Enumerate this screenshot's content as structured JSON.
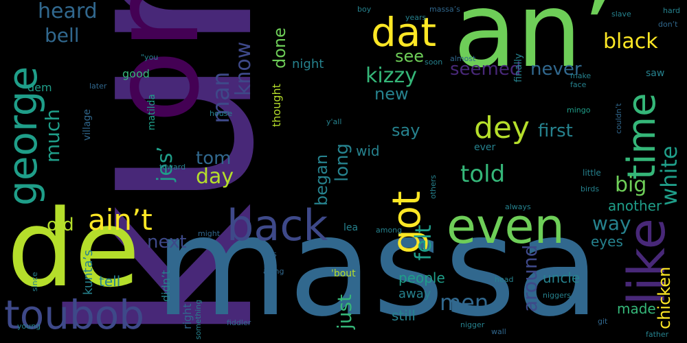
{
  "background": "#000000",
  "palette": [
    "#440154",
    "#482878",
    "#3e4989",
    "#31688e",
    "#26828e",
    "#1f9e89",
    "#35b779",
    "#6ece58",
    "#b5de2b",
    "#fde725"
  ],
  "words": [
    {
      "text": "kunta",
      "weight": 100,
      "color": "#482878"
    },
    {
      "text": "one",
      "weight": 72,
      "color": "#440154"
    },
    {
      "text": "an’",
      "weight": 60,
      "color": "#6ece58"
    },
    {
      "text": "massa",
      "weight": 62,
      "color": "#31688e"
    },
    {
      "text": "de",
      "weight": 55,
      "color": "#b5de2b"
    },
    {
      "text": "back",
      "weight": 30,
      "color": "#3e4989"
    },
    {
      "text": "even",
      "weight": 26,
      "color": "#6ece58"
    },
    {
      "text": "like",
      "weight": 26,
      "color": "#482878"
    },
    {
      "text": "toubob",
      "weight": 20,
      "color": "#3e4989"
    },
    {
      "text": "george",
      "weight": 22,
      "color": "#1f9e89"
    },
    {
      "text": "dat",
      "weight": 20,
      "color": "#fde725"
    },
    {
      "text": "time",
      "weight": 18,
      "color": "#35b779"
    },
    {
      "text": "got",
      "weight": 18,
      "color": "#fde725"
    },
    {
      "text": "ain’t",
      "weight": 15,
      "color": "#fde725"
    },
    {
      "text": "white",
      "weight": 13,
      "color": "#1f9e89"
    },
    {
      "text": "heard",
      "weight": 10,
      "color": "#31688e"
    },
    {
      "text": "bell",
      "weight": 10,
      "color": "#31688e"
    },
    {
      "text": "much",
      "weight": 9,
      "color": "#1f9e89"
    },
    {
      "text": "man",
      "weight": 10,
      "color": "#3e4989"
    },
    {
      "text": "know",
      "weight": 9,
      "color": "#3e4989"
    },
    {
      "text": "done",
      "weight": 8,
      "color": "#6ece58"
    },
    {
      "text": "seemed",
      "weight": 8,
      "color": "#482878"
    },
    {
      "text": "never",
      "weight": 8,
      "color": "#31688e"
    },
    {
      "text": "black",
      "weight": 9,
      "color": "#fde725"
    },
    {
      "text": "kizzy",
      "weight": 9,
      "color": "#35b779"
    },
    {
      "text": "see",
      "weight": 7,
      "color": "#6ece58"
    },
    {
      "text": "night",
      "weight": 6,
      "color": "#26828e"
    },
    {
      "text": "new",
      "weight": 8,
      "color": "#26828e"
    },
    {
      "text": "dey",
      "weight": 11,
      "color": "#b5de2b"
    },
    {
      "text": "say",
      "weight": 7,
      "color": "#26828e"
    },
    {
      "text": "first",
      "weight": 8,
      "color": "#26828e"
    },
    {
      "text": "tom",
      "weight": 8,
      "color": "#31688e"
    },
    {
      "text": "day",
      "weight": 9,
      "color": "#b5de2b"
    },
    {
      "text": "jes’",
      "weight": 9,
      "color": "#1f9e89"
    },
    {
      "text": "told",
      "weight": 10,
      "color": "#35b779"
    },
    {
      "text": "began",
      "weight": 8,
      "color": "#26828e"
    },
    {
      "text": "long",
      "weight": 8,
      "color": "#26828e"
    },
    {
      "text": "wid",
      "weight": 7,
      "color": "#26828e"
    },
    {
      "text": "big",
      "weight": 9,
      "color": "#6ece58"
    },
    {
      "text": "old",
      "weight": 8,
      "color": "#b5de2b"
    },
    {
      "text": "next",
      "weight": 8,
      "color": "#3e4989"
    },
    {
      "text": "kunta’s",
      "weight": 6,
      "color": "#26828e"
    },
    {
      "text": "tell",
      "weight": 6,
      "color": "#26828e"
    },
    {
      "text": "felt",
      "weight": 9,
      "color": "#1f9e89"
    },
    {
      "text": "just",
      "weight": 8,
      "color": "#35b779"
    },
    {
      "text": "men",
      "weight": 9,
      "color": "#31688e"
    },
    {
      "text": "around",
      "weight": 8,
      "color": "#3e4989"
    },
    {
      "text": "people",
      "weight": 6,
      "color": "#1f9e89"
    },
    {
      "text": "away",
      "weight": 6,
      "color": "#26828e"
    },
    {
      "text": "still",
      "weight": 6,
      "color": "#26828e"
    },
    {
      "text": "another",
      "weight": 6,
      "color": "#1f9e89"
    },
    {
      "text": "way",
      "weight": 8,
      "color": "#26828e"
    },
    {
      "text": "eyes",
      "weight": 6,
      "color": "#26828e"
    },
    {
      "text": "chicken",
      "weight": 7,
      "color": "#fde725"
    },
    {
      "text": "uncle",
      "weight": 6,
      "color": "#26828e"
    },
    {
      "text": "made",
      "weight": 6,
      "color": "#35b779"
    },
    {
      "text": "finally",
      "weight": 5,
      "color": "#26828e"
    },
    {
      "text": "good",
      "weight": 5,
      "color": "#35b779"
    },
    {
      "text": "matilda",
      "weight": 5,
      "color": "#1f9e89"
    },
    {
      "text": "village",
      "weight": 5,
      "color": "#31688e"
    },
    {
      "text": "right",
      "weight": 5,
      "color": "#31688e"
    },
    {
      "text": "didn’t",
      "weight": 5,
      "color": "#26828e"
    },
    {
      "text": "dem",
      "weight": 5,
      "color": "#1f9e89"
    },
    {
      "text": "thought",
      "weight": 5,
      "color": "#b5de2b"
    },
    {
      "text": "ever",
      "weight": 5,
      "color": "#26828e"
    },
    {
      "text": "little",
      "weight": 4,
      "color": "#26828e"
    },
    {
      "text": "saw",
      "weight": 4,
      "color": "#26828e"
    },
    {
      "text": "almost",
      "weight": 3,
      "color": "#31688e"
    },
    {
      "text": "make",
      "weight": 3,
      "color": "#26828e"
    },
    {
      "text": "face",
      "weight": 3,
      "color": "#26828e"
    },
    {
      "text": "mingo",
      "weight": 3,
      "color": "#1f9e89"
    },
    {
      "text": "lea",
      "weight": 4,
      "color": "#26828e"
    },
    {
      "text": "'bout",
      "weight": 4,
      "color": "#b5de2b"
    },
    {
      "text": "couldn’t",
      "weight": 3,
      "color": "#31688e"
    },
    {
      "text": "don’t",
      "weight": 3,
      "color": "#31688e"
    },
    {
      "text": "boy",
      "weight": 3,
      "color": "#26828e"
    },
    {
      "text": "slave",
      "weight": 3,
      "color": "#26828e"
    },
    {
      "text": "massa’s",
      "weight": 3,
      "color": "#31688e"
    },
    {
      "text": "niggers",
      "weight": 3,
      "color": "#26828e"
    },
    {
      "text": "head",
      "weight": 3,
      "color": "#26828e"
    },
    {
      "text": "soon",
      "weight": 3,
      "color": "#26828e"
    },
    {
      "text": "later",
      "weight": 3,
      "color": "#31688e"
    },
    {
      "text": "\"you",
      "weight": 3,
      "color": "#26828e"
    },
    {
      "text": "toward",
      "weight": 3,
      "color": "#26828e"
    },
    {
      "text": "along",
      "weight": 3,
      "color": "#31688e"
    },
    {
      "text": "since",
      "weight": 3,
      "color": "#26828e"
    },
    {
      "text": "us",
      "weight": 3,
      "color": "#31688e"
    },
    {
      "text": "among",
      "weight": 3,
      "color": "#26828e"
    },
    {
      "text": "something",
      "weight": 3,
      "color": "#26828e"
    },
    {
      "text": "others",
      "weight": 3,
      "color": "#26828e"
    },
    {
      "text": "birds",
      "weight": 3,
      "color": "#26828e"
    },
    {
      "text": "always",
      "weight": 3,
      "color": "#26828e"
    },
    {
      "text": "might",
      "weight": 3,
      "color": "#31688e"
    },
    {
      "text": "house",
      "weight": 3,
      "color": "#26828e"
    },
    {
      "text": "fiddler",
      "weight": 3,
      "color": "#31688e"
    },
    {
      "text": "git",
      "weight": 3,
      "color": "#31688e"
    },
    {
      "text": "y'all",
      "weight": 3,
      "color": "#26828e"
    },
    {
      "text": "wall",
      "weight": 3,
      "color": "#31688e"
    },
    {
      "text": "nigger",
      "weight": 3,
      "color": "#26828e"
    },
    {
      "text": "young",
      "weight": 3,
      "color": "#26828e"
    },
    {
      "text": "father",
      "weight": 3,
      "color": "#26828e"
    },
    {
      "text": "hard",
      "weight": 3,
      "color": "#26828e"
    },
    {
      "text": "years",
      "weight": 3,
      "color": "#26828e"
    }
  ]
}
